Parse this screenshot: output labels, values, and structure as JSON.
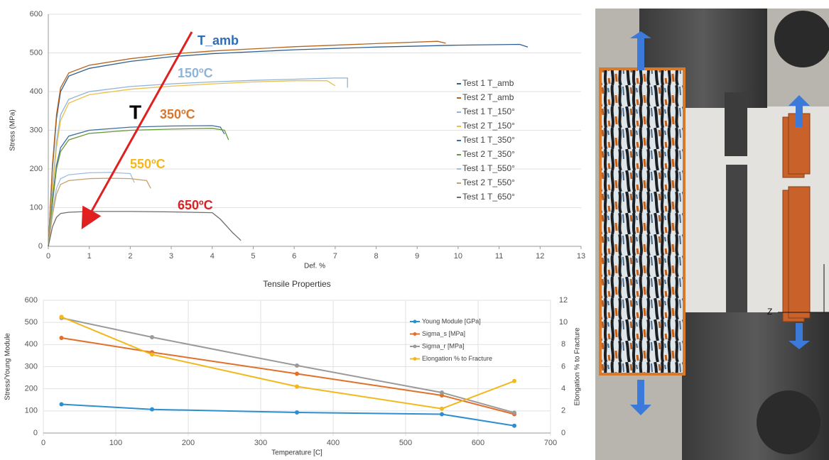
{
  "chart_data": [
    {
      "type": "line",
      "xlabel": "Def. %",
      "ylabel": "Stress (MPa)",
      "xlim": [
        0,
        13
      ],
      "ylim": [
        0,
        600
      ],
      "xticks": [
        0,
        1,
        2,
        3,
        4,
        5,
        6,
        7,
        8,
        9,
        10,
        11,
        12,
        13
      ],
      "yticks": [
        0,
        100,
        200,
        300,
        400,
        500,
        600
      ],
      "grid": true,
      "series": [
        {
          "name": "Test 1 T_amb",
          "color": "#2f5f8f",
          "x": [
            0,
            0.1,
            0.2,
            0.3,
            0.5,
            1,
            2,
            3,
            4,
            6,
            8,
            10,
            11.5,
            11.7
          ],
          "values": [
            0,
            200,
            330,
            400,
            440,
            460,
            478,
            490,
            498,
            508,
            515,
            520,
            522,
            515
          ]
        },
        {
          "name": "Test 2 T_amb",
          "color": "#b5651d",
          "x": [
            0,
            0.1,
            0.2,
            0.3,
            0.5,
            1,
            2,
            3,
            4,
            6,
            8,
            9.5,
            9.7
          ],
          "values": [
            0,
            210,
            340,
            410,
            448,
            468,
            485,
            497,
            505,
            516,
            524,
            530,
            525
          ]
        },
        {
          "name": "Test 1 T_150°",
          "color": "#8fb4d9",
          "x": [
            0,
            0.1,
            0.2,
            0.3,
            0.5,
            1,
            2,
            3,
            4,
            5,
            6,
            7,
            7.3,
            7.3
          ],
          "values": [
            0,
            150,
            270,
            340,
            380,
            400,
            413,
            420,
            425,
            429,
            432,
            435,
            435,
            410
          ]
        },
        {
          "name": "Test 2 T_150°",
          "color": "#e8c04a",
          "x": [
            0,
            0.1,
            0.2,
            0.3,
            0.5,
            1,
            2,
            3,
            4,
            5,
            6,
            6.8,
            7.0
          ],
          "values": [
            0,
            140,
            255,
            325,
            370,
            392,
            406,
            414,
            420,
            425,
            428,
            428,
            415
          ]
        },
        {
          "name": "Test 1 T_350°",
          "color": "#3b6ea5",
          "x": [
            0,
            0.1,
            0.2,
            0.3,
            0.5,
            1,
            2,
            3,
            4,
            4.2,
            4.3
          ],
          "values": [
            0,
            120,
            210,
            255,
            285,
            300,
            308,
            311,
            312,
            308,
            290
          ]
        },
        {
          "name": "Test 2 T_350°",
          "color": "#6a9a3a",
          "x": [
            0,
            0.1,
            0.2,
            0.3,
            0.5,
            1,
            2,
            3,
            4,
            4.3,
            4.4
          ],
          "values": [
            0,
            110,
            200,
            245,
            275,
            292,
            300,
            303,
            305,
            300,
            275
          ]
        },
        {
          "name": "Test 1 T_550°",
          "color": "#9dbfe0",
          "x": [
            0,
            0.1,
            0.2,
            0.3,
            0.5,
            1,
            1.5,
            2,
            2.1
          ],
          "values": [
            0,
            90,
            150,
            175,
            185,
            190,
            191,
            188,
            165
          ]
        },
        {
          "name": "Test 2 T_550°",
          "color": "#c8a06a",
          "x": [
            0,
            0.1,
            0.2,
            0.3,
            0.5,
            1,
            1.5,
            2,
            2.4,
            2.5
          ],
          "values": [
            0,
            80,
            135,
            160,
            170,
            175,
            176,
            175,
            170,
            150
          ]
        },
        {
          "name": "Test 1 T_650°",
          "color": "#6d6d6d",
          "x": [
            0,
            0.1,
            0.2,
            0.3,
            0.5,
            1,
            2,
            3,
            4,
            4.2,
            4.5,
            4.7
          ],
          "values": [
            0,
            50,
            75,
            85,
            88,
            90,
            90,
            89,
            87,
            70,
            35,
            15
          ]
        }
      ],
      "annotations": [
        {
          "text": "T_amb",
          "color": "#2f6db5"
        },
        {
          "text": "150ºC",
          "color": "#8fb4d9"
        },
        {
          "text": "T",
          "color": "#000000"
        },
        {
          "text": "350ºC",
          "color": "#d9772b"
        },
        {
          "text": "550ºC",
          "color": "#f2b81c"
        },
        {
          "text": "650ºC",
          "color": "#e02020"
        }
      ]
    },
    {
      "type": "line",
      "title": "Tensile Properties",
      "xlabel": "Temperature [C]",
      "ylabel": "Stress/Young Module",
      "y2label": "Elongation % to Fracture",
      "x": [
        25,
        150,
        350,
        550,
        650
      ],
      "xlim": [
        0,
        700
      ],
      "ylim": [
        0,
        600
      ],
      "y2lim": [
        0,
        12
      ],
      "xticks": [
        0,
        100,
        200,
        300,
        400,
        500,
        600,
        700
      ],
      "yticks": [
        0,
        100,
        200,
        300,
        400,
        500,
        600
      ],
      "y2ticks": [
        0,
        2,
        4,
        6,
        8,
        10,
        12
      ],
      "grid": true,
      "xgrid": true,
      "markers": true,
      "series": [
        {
          "name": "Young Module [GPa]",
          "color": "#2e8fd0",
          "values": [
            130,
            107,
            93,
            85,
            33
          ]
        },
        {
          "name": "Sigma_s [MPa]",
          "color": "#e0702a",
          "values": [
            430,
            365,
            268,
            170,
            85
          ]
        },
        {
          "name": "Sigma_r [MPa]",
          "color": "#9a9a9a",
          "values": [
            520,
            433,
            305,
            183,
            92
          ]
        },
        {
          "name": "Elongation %  to Fracture",
          "color": "#f2b81c",
          "axis": "y2",
          "values": [
            10.5,
            7.1,
            4.2,
            2.2,
            4.7
          ]
        }
      ]
    }
  ],
  "photo": {
    "labels": [
      "Z"
    ]
  }
}
